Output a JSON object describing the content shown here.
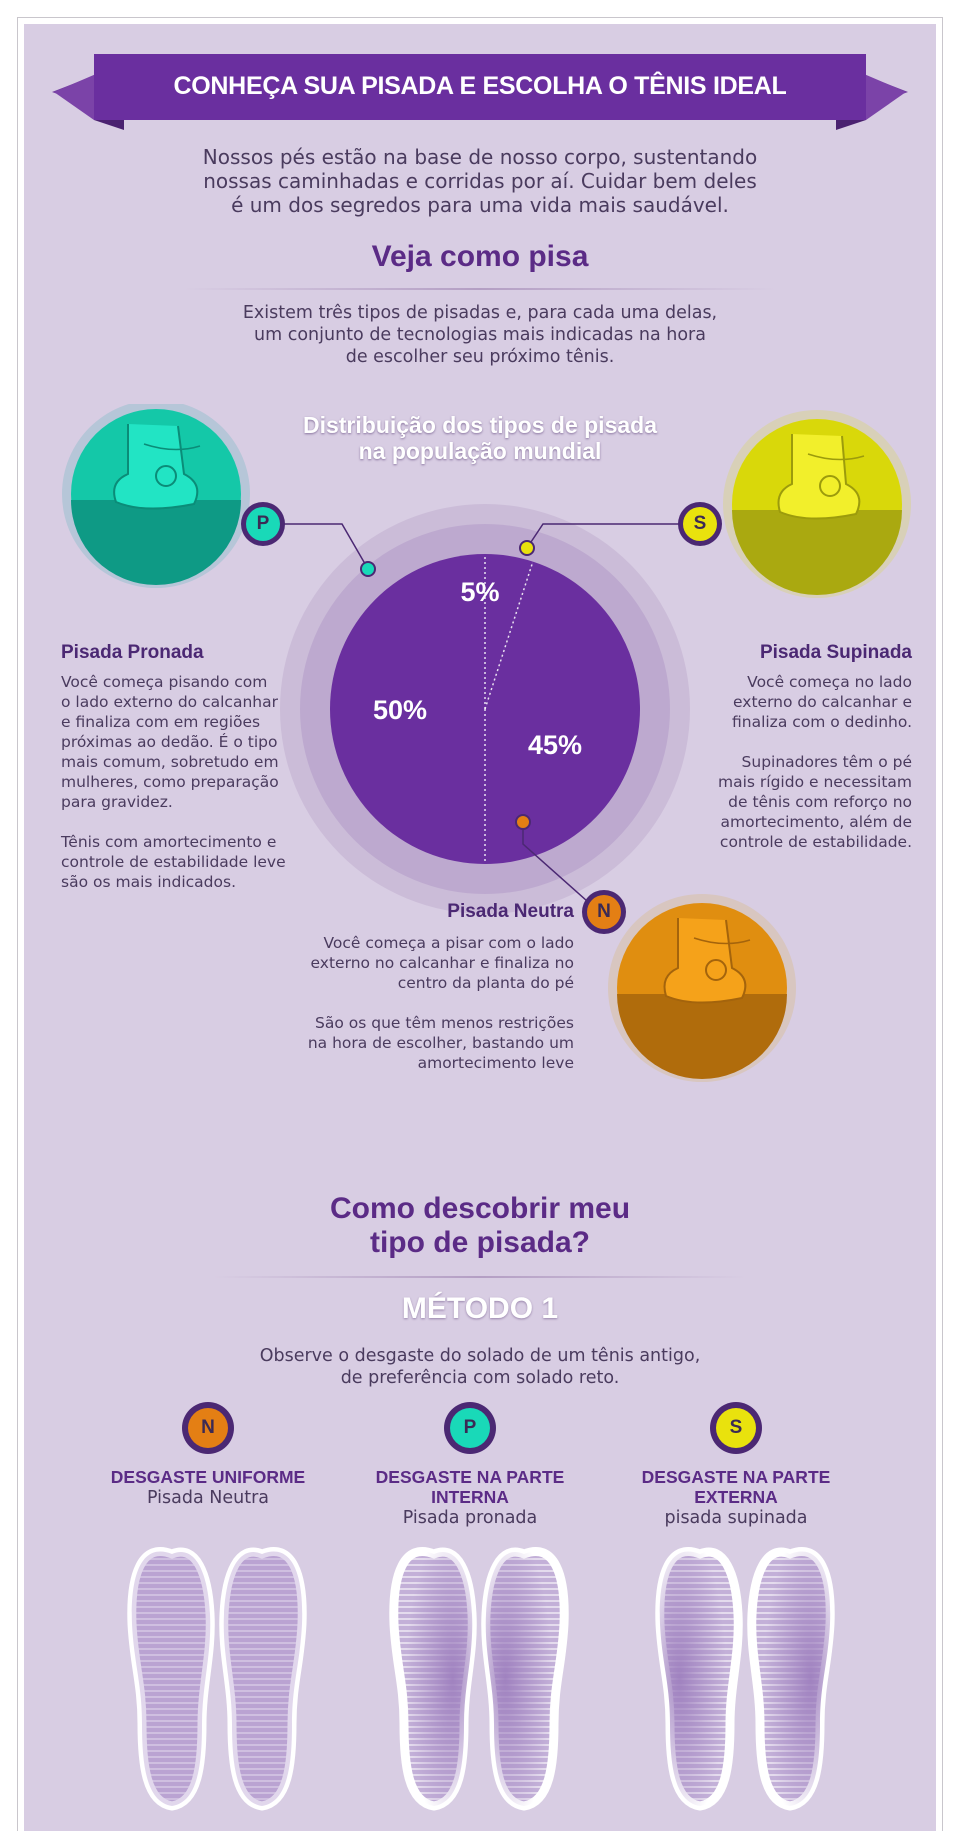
{
  "banner": {
    "title": "CONHEÇA SUA PISADA E ESCOLHA O TÊNIS IDEAL"
  },
  "intro": [
    "Nossos pés estão na base de nosso corpo, sustentando",
    "nossas caminhadas e corridas por aí. Cuidar bem deles",
    "é um dos segredos para uma vida mais saudável."
  ],
  "section1": {
    "heading": "Veja como pisa",
    "text": [
      "Existem três tipos de pisadas e, para cada uma delas,",
      "um conjunto de tecnologias mais indicadas na hora",
      "de escolher seu próximo tênis."
    ]
  },
  "chart_data": {
    "type": "pie",
    "title": [
      "Distribuição dos tipos de pisada",
      "na população mundial"
    ],
    "categories": [
      "Pronada",
      "Supinada",
      "Neutra"
    ],
    "values": [
      50,
      5,
      45
    ],
    "labels": [
      "50%",
      "5%",
      "45%"
    ],
    "colors": [
      "#6a2f9f",
      "#f2e00a",
      "#e47f14"
    ],
    "pie_color": "#6a2f9f"
  },
  "types": {
    "pronada": {
      "badge": "P",
      "color": "#19d9b8",
      "title": "Pisada Pronada",
      "text": [
        "Você começa pisando com",
        "o lado externo do calcanhar",
        "e finaliza com em regiões",
        "próximas ao dedão. É o tipo",
        "mais comum, sobretudo em",
        "mulheres, como preparação",
        "para gravidez."
      ],
      "text2": [
        "Tênis com amortecimento e",
        "controle de estabilidade leve",
        "são os mais indicados."
      ]
    },
    "supinada": {
      "badge": "S",
      "color": "#e9e20d",
      "title": "Pisada Supinada",
      "text": [
        "Você começa no lado",
        "externo do calcanhar e",
        "finaliza com o dedinho."
      ],
      "text2": [
        "Supinadores têm o pé",
        "mais rígido e necessitam",
        "de tênis com reforço no",
        "amortecimento, além de",
        "controle de estabilidade."
      ]
    },
    "neutra": {
      "badge": "N",
      "color": "#e47f14",
      "title": "Pisada Neutra",
      "text": [
        "Você começa a pisar com o lado",
        "externo no calcanhar e finaliza no",
        "centro da planta do pé"
      ],
      "text2": [
        "São os que têm menos restrições",
        "na hora de escolher, bastando um",
        "amortecimento leve"
      ]
    }
  },
  "section2": {
    "heading": [
      "Como descobrir meu",
      "tipo de pisada?"
    ],
    "method_title": "MÉTODO 1",
    "method_text": [
      "Observe o desgaste do solado de um tênis antigo,",
      "de preferência com solado reto."
    ],
    "columns": [
      {
        "badge": "N",
        "title": [
          "DESGASTE UNIFORME"
        ],
        "subtitle": "Pisada Neutra",
        "wear": "uniforme"
      },
      {
        "badge": "P",
        "title": [
          "DESGASTE NA PARTE",
          "INTERNA"
        ],
        "subtitle": "Pisada pronada",
        "wear": "interna"
      },
      {
        "badge": "S",
        "title": [
          "DESGASTE NA PARTE",
          "EXTERNA"
        ],
        "subtitle": "pisada supinada",
        "wear": "externa"
      }
    ]
  }
}
